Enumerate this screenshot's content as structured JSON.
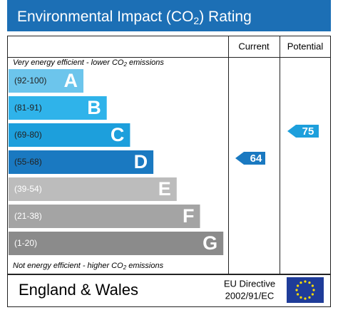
{
  "title": {
    "before": "Environmental Impact (CO",
    "sub": "2",
    "after": ") Rating"
  },
  "columns": {
    "current": "Current",
    "potential": "Potential"
  },
  "top_note": {
    "before": "Very energy efficient - lower CO",
    "sub": "2",
    "after": " emissions"
  },
  "bottom_note": {
    "before": "Not energy efficient - higher CO",
    "sub": "2",
    "after": " emissions"
  },
  "bands": [
    {
      "range": "(92-100)",
      "letter": "A",
      "color": "#6cc5ec"
    },
    {
      "range": "(81-91)",
      "letter": "B",
      "color": "#2fb3ea"
    },
    {
      "range": "(69-80)",
      "letter": "C",
      "color": "#1d9fdc"
    },
    {
      "range": "(55-68)",
      "letter": "D",
      "color": "#1a79c1"
    },
    {
      "range": "(39-54)",
      "letter": "E",
      "color": "#bcbcbc"
    },
    {
      "range": "(21-38)",
      "letter": "F",
      "color": "#a4a4a4"
    },
    {
      "range": "(1-20)",
      "letter": "G",
      "color": "#8b8b8b"
    }
  ],
  "ratings": {
    "current": 64,
    "potential": 75
  },
  "footer": {
    "region": "England & Wales",
    "directive_line1": "EU Directive",
    "directive_line2": "2002/91/EC"
  }
}
